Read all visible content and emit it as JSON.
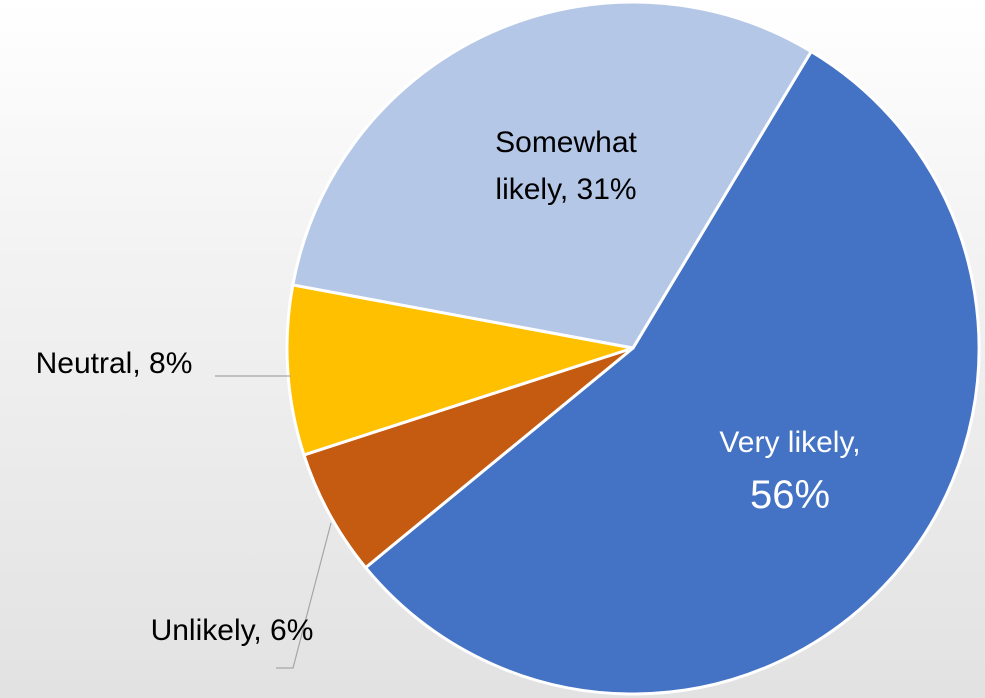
{
  "chart_data": {
    "type": "pie",
    "title": "",
    "start_angle_deg": 31,
    "direction": "clockwise",
    "slices": [
      {
        "label": "Very likely",
        "value": 56,
        "value_label": "56%",
        "color": "#4472C4",
        "label_color": "#ffffff"
      },
      {
        "label": "Unlikely",
        "value": 6,
        "value_label": "6%",
        "color": "#C55A11",
        "label_color": "#000000"
      },
      {
        "label": "Neutral",
        "value": 8,
        "value_label": "8%",
        "color": "#FFC000",
        "label_color": "#000000"
      },
      {
        "label": "Somewhat likely",
        "value": 31,
        "value_label": "31%",
        "color": "#B4C7E7",
        "label_color": "#000000"
      }
    ]
  }
}
